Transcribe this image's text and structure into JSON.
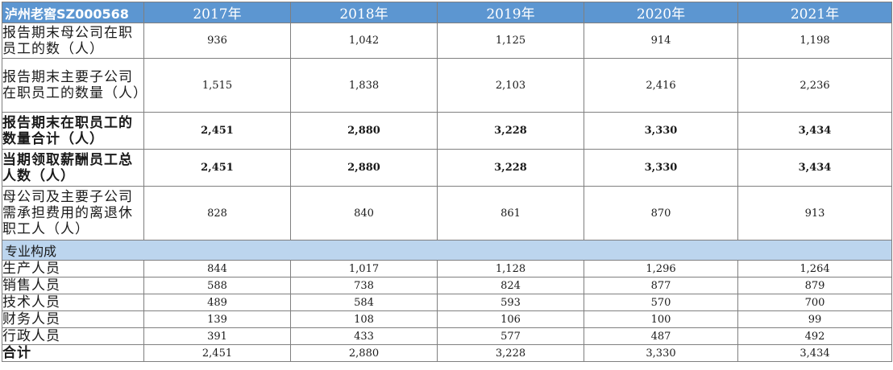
{
  "header": {
    "brand": "泸州老窖SZ000568",
    "years": [
      "2017年",
      "2018年",
      "2019年",
      "2020年",
      "2021年"
    ]
  },
  "rows_top": [
    {
      "label": "报告期末母公司在职员工的数（人）",
      "values": [
        "936",
        "1,042",
        "1,125",
        "914",
        "1,198"
      ],
      "bold": false
    },
    {
      "label": "报告期末主要子公司在职员工的数量（人）",
      "values": [
        "1,515",
        "1,838",
        "2,103",
        "2,416",
        "2,236"
      ],
      "bold": false
    },
    {
      "label": "报告期末在职员工的数量合计（人）",
      "values": [
        "2,451",
        "2,880",
        "3,228",
        "3,330",
        "3,434"
      ],
      "bold": true
    },
    {
      "label": "当期领取薪酬员工总人数（人）",
      "values": [
        "2,451",
        "2,880",
        "3,228",
        "3,330",
        "3,434"
      ],
      "bold": true
    },
    {
      "label": "母公司及主要子公司需承担费用的离退休职工人（人）",
      "values": [
        "828",
        "840",
        "861",
        "870",
        "913"
      ],
      "bold": false
    }
  ],
  "section_label": "专业构成",
  "rows_bottom": [
    {
      "label": "生产人员",
      "values": [
        "844",
        "1,017",
        "1,128",
        "1,296",
        "1,264"
      ],
      "bold": false
    },
    {
      "label": "销售人员",
      "values": [
        "588",
        "738",
        "824",
        "877",
        "879"
      ],
      "bold": false
    },
    {
      "label": "技术人员",
      "values": [
        "489",
        "584",
        "593",
        "570",
        "700"
      ],
      "bold": false
    },
    {
      "label": "财务人员",
      "values": [
        "139",
        "108",
        "106",
        "100",
        "99"
      ],
      "bold": false
    },
    {
      "label": "行政人员",
      "values": [
        "391",
        "433",
        "577",
        "487",
        "492"
      ],
      "bold": false
    },
    {
      "label": "合计",
      "values": [
        "2,451",
        "2,880",
        "3,228",
        "3,330",
        "3,434"
      ],
      "bold": true
    }
  ],
  "colors": {
    "header_bg": "#5c96d1",
    "section_bg": "#bcd5ee",
    "border": "#7f7f7f"
  }
}
